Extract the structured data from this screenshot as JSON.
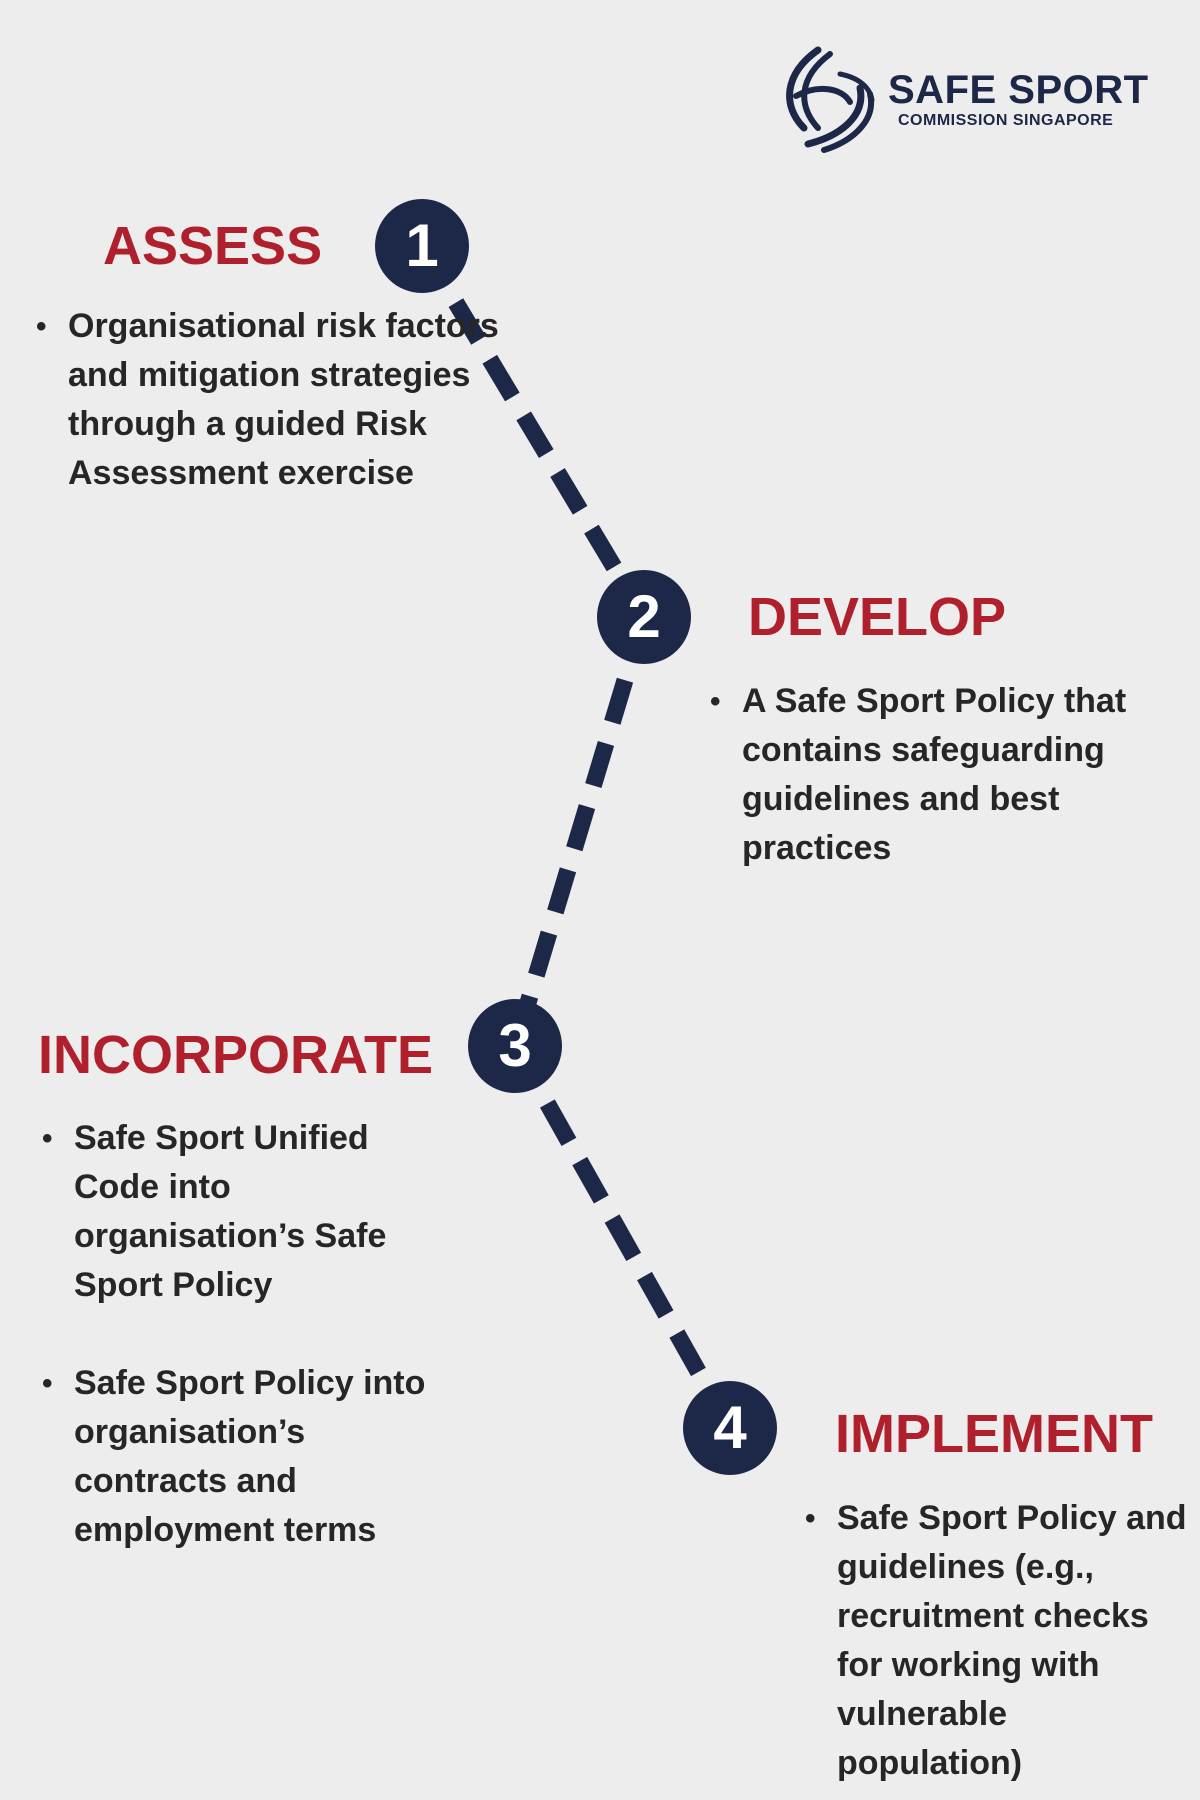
{
  "brand": {
    "title": "SAFE SPORT",
    "subtitle": "COMMISSION SINGAPORE",
    "logo_icon": "stripes-logo-icon",
    "color": "#1d2848"
  },
  "colors": {
    "background": "#ededed",
    "accent_red": "#b0202c",
    "navy": "#1d2848",
    "text": "#262626"
  },
  "steps": [
    {
      "number": "1",
      "title": "ASSESS",
      "bullets": [
        "Organisational risk factors and mitigation strategies through a guided Risk Assessment exercise"
      ]
    },
    {
      "number": "2",
      "title": "DEVELOP",
      "bullets": [
        "A Safe Sport Policy that contains safeguarding guidelines and best practices"
      ]
    },
    {
      "number": "3",
      "title": "INCORPORATE",
      "bullets": [
        "Safe Sport Unified Code into organisation’s Safe Sport Policy",
        "Safe Sport Policy into organisation’s contracts and employment terms"
      ]
    },
    {
      "number": "4",
      "title": "IMPLEMENT",
      "bullets": [
        "Safe Sport Policy and guidelines (e.g., recruitment checks for working with vulnerable population)"
      ]
    }
  ]
}
